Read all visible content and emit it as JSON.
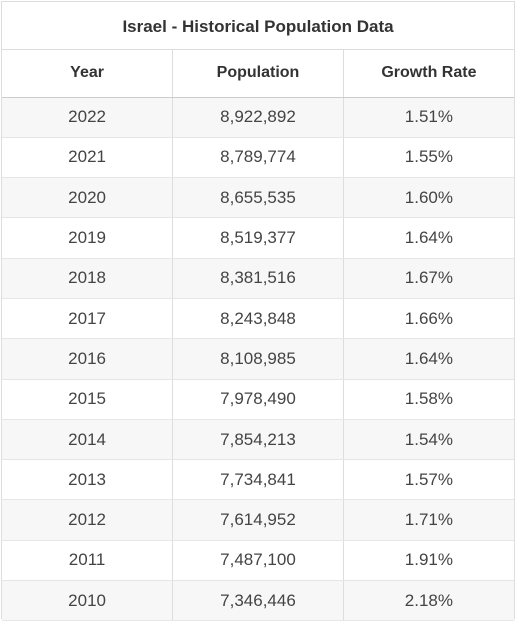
{
  "table": {
    "title": "Israel - Historical Population Data",
    "headers": [
      "Year",
      "Population",
      "Growth Rate"
    ],
    "rows": [
      [
        "2022",
        "8,922,892",
        "1.51%"
      ],
      [
        "2021",
        "8,789,774",
        "1.55%"
      ],
      [
        "2020",
        "8,655,535",
        "1.60%"
      ],
      [
        "2019",
        "8,519,377",
        "1.64%"
      ],
      [
        "2018",
        "8,381,516",
        "1.67%"
      ],
      [
        "2017",
        "8,243,848",
        "1.66%"
      ],
      [
        "2016",
        "8,108,985",
        "1.64%"
      ],
      [
        "2015",
        "7,978,490",
        "1.58%"
      ],
      [
        "2014",
        "7,854,213",
        "1.54%"
      ],
      [
        "2013",
        "7,734,841",
        "1.57%"
      ],
      [
        "2012",
        "7,614,952",
        "1.71%"
      ],
      [
        "2011",
        "7,487,100",
        "1.91%"
      ],
      [
        "2010",
        "7,346,446",
        "2.18%"
      ]
    ]
  }
}
